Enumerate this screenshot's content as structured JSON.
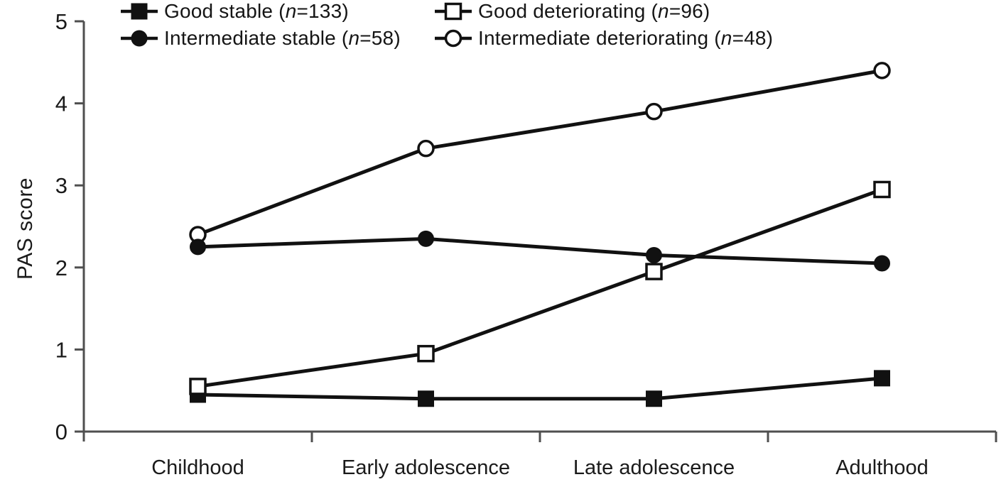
{
  "figure": {
    "background": "#ffffff",
    "line_color": "#111111",
    "axis_color": "#4f4f4f",
    "marker_open_fill": "#ffffff"
  },
  "chart_data": {
    "type": "line",
    "title": "",
    "xlabel": "",
    "ylabel": "PAS score",
    "ylim": [
      0,
      5
    ],
    "yticks": [
      0,
      1,
      2,
      3,
      4,
      5
    ],
    "grid": false,
    "legend_position": "top",
    "categories": [
      "Childhood",
      "Early adolescence",
      "Late adolescence",
      "Adulthood"
    ],
    "series": [
      {
        "name": "Good stable",
        "n_symbol": "n",
        "n": "133",
        "marker": "square",
        "fill": "filled",
        "values": [
          0.45,
          0.4,
          0.4,
          0.65
        ]
      },
      {
        "name": "Good deteriorating",
        "n_symbol": "n",
        "n": "96",
        "marker": "square",
        "fill": "open",
        "values": [
          0.55,
          0.95,
          1.95,
          2.95
        ]
      },
      {
        "name": "Intermediate stable",
        "n_symbol": "n",
        "n": "58",
        "marker": "circle",
        "fill": "filled",
        "values": [
          2.25,
          2.35,
          2.15,
          2.05
        ]
      },
      {
        "name": "Intermediate deteriorating",
        "n_symbol": "n",
        "n": "48",
        "marker": "circle",
        "fill": "open",
        "values": [
          2.4,
          3.45,
          3.9,
          4.4
        ]
      }
    ]
  }
}
